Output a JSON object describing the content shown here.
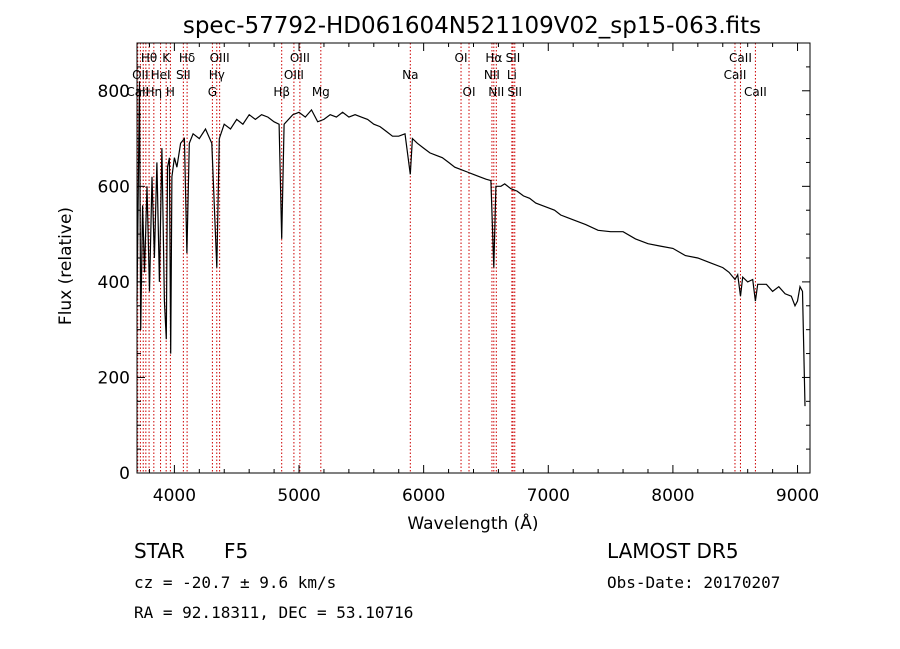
{
  "chart_data": {
    "type": "line",
    "title": "spec-57792-HD061604N521109V02_sp15-063.fits",
    "xlabel": "Wavelength (Å)",
    "ylabel": "Flux (relative)",
    "xlim": [
      3700,
      9100
    ],
    "ylim": [
      0,
      900
    ],
    "x_ticks": [
      4000,
      5000,
      6000,
      7000,
      8000,
      9000
    ],
    "y_ticks": [
      0,
      200,
      400,
      600,
      800
    ],
    "grid": false,
    "series": [
      {
        "points": [
          [
            3700,
            360
          ],
          [
            3720,
            820
          ],
          [
            3730,
            300
          ],
          [
            3745,
            560
          ],
          [
            3760,
            420
          ],
          [
            3780,
            600
          ],
          [
            3800,
            380
          ],
          [
            3820,
            620
          ],
          [
            3840,
            450
          ],
          [
            3860,
            650
          ],
          [
            3880,
            400
          ],
          [
            3900,
            680
          ],
          [
            3920,
            360
          ],
          [
            3935,
            280
          ],
          [
            3945,
            640
          ],
          [
            3960,
            660
          ],
          [
            3970,
            250
          ],
          [
            3980,
            620
          ],
          [
            4000,
            660
          ],
          [
            4020,
            640
          ],
          [
            4050,
            690
          ],
          [
            4080,
            700
          ],
          [
            4100,
            460
          ],
          [
            4120,
            690
          ],
          [
            4150,
            710
          ],
          [
            4200,
            700
          ],
          [
            4250,
            720
          ],
          [
            4300,
            690
          ],
          [
            4340,
            430
          ],
          [
            4360,
            700
          ],
          [
            4400,
            730
          ],
          [
            4450,
            720
          ],
          [
            4500,
            740
          ],
          [
            4550,
            730
          ],
          [
            4600,
            750
          ],
          [
            4650,
            740
          ],
          [
            4700,
            750
          ],
          [
            4750,
            745
          ],
          [
            4800,
            735
          ],
          [
            4840,
            730
          ],
          [
            4861,
            490
          ],
          [
            4880,
            730
          ],
          [
            4950,
            750
          ],
          [
            5000,
            755
          ],
          [
            5050,
            745
          ],
          [
            5100,
            760
          ],
          [
            5150,
            735
          ],
          [
            5200,
            740
          ],
          [
            5250,
            750
          ],
          [
            5300,
            745
          ],
          [
            5350,
            755
          ],
          [
            5400,
            745
          ],
          [
            5450,
            750
          ],
          [
            5500,
            745
          ],
          [
            5550,
            740
          ],
          [
            5600,
            730
          ],
          [
            5650,
            725
          ],
          [
            5700,
            715
          ],
          [
            5750,
            705
          ],
          [
            5800,
            705
          ],
          [
            5850,
            710
          ],
          [
            5893,
            625
          ],
          [
            5910,
            700
          ],
          [
            5950,
            690
          ],
          [
            6000,
            680
          ],
          [
            6050,
            670
          ],
          [
            6100,
            665
          ],
          [
            6150,
            660
          ],
          [
            6200,
            650
          ],
          [
            6250,
            640
          ],
          [
            6300,
            635
          ],
          [
            6350,
            630
          ],
          [
            6400,
            625
          ],
          [
            6450,
            620
          ],
          [
            6500,
            615
          ],
          [
            6540,
            612
          ],
          [
            6563,
            430
          ],
          [
            6580,
            600
          ],
          [
            6620,
            600
          ],
          [
            6650,
            605
          ],
          [
            6700,
            595
          ],
          [
            6750,
            590
          ],
          [
            6800,
            580
          ],
          [
            6850,
            575
          ],
          [
            6900,
            565
          ],
          [
            6950,
            560
          ],
          [
            7000,
            555
          ],
          [
            7050,
            550
          ],
          [
            7100,
            540
          ],
          [
            7150,
            535
          ],
          [
            7200,
            530
          ],
          [
            7300,
            520
          ],
          [
            7400,
            508
          ],
          [
            7500,
            505
          ],
          [
            7600,
            505
          ],
          [
            7700,
            490
          ],
          [
            7800,
            480
          ],
          [
            7900,
            475
          ],
          [
            8000,
            470
          ],
          [
            8100,
            455
          ],
          [
            8200,
            450
          ],
          [
            8300,
            440
          ],
          [
            8400,
            430
          ],
          [
            8450,
            420
          ],
          [
            8498,
            405
          ],
          [
            8520,
            415
          ],
          [
            8542,
            370
          ],
          [
            8560,
            410
          ],
          [
            8600,
            400
          ],
          [
            8640,
            405
          ],
          [
            8662,
            360
          ],
          [
            8680,
            395
          ],
          [
            8750,
            395
          ],
          [
            8800,
            380
          ],
          [
            8850,
            390
          ],
          [
            8900,
            375
          ],
          [
            8950,
            370
          ],
          [
            8980,
            350
          ],
          [
            9000,
            360
          ],
          [
            9020,
            390
          ],
          [
            9040,
            380
          ],
          [
            9060,
            140
          ]
        ]
      }
    ],
    "line_markers": [
      {
        "label": "Hθ",
        "wavelength": 3797,
        "row": 0
      },
      {
        "label": "K",
        "wavelength": 3934,
        "row": 0
      },
      {
        "label": "Hδ",
        "wavelength": 4102,
        "row": 0
      },
      {
        "label": "OIII",
        "wavelength": 4363,
        "row": 0
      },
      {
        "label": "OIII",
        "wavelength": 5007,
        "row": 0
      },
      {
        "label": "OI",
        "wavelength": 6300,
        "row": 0
      },
      {
        "label": "Hα",
        "wavelength": 6563,
        "row": 0
      },
      {
        "label": "SII",
        "wavelength": 6717,
        "row": 0
      },
      {
        "label": "CaII",
        "wavelength": 8542,
        "row": 0
      },
      {
        "label": "OII",
        "wavelength": 3727,
        "row": 1
      },
      {
        "label": "HeI",
        "wavelength": 3889,
        "row": 1
      },
      {
        "label": "SII",
        "wavelength": 4072,
        "row": 1
      },
      {
        "label": "Hγ",
        "wavelength": 4340,
        "row": 1
      },
      {
        "label": "OIII",
        "wavelength": 4959,
        "row": 1
      },
      {
        "label": "Na",
        "wavelength": 5893,
        "row": 1
      },
      {
        "label": "NII",
        "wavelength": 6548,
        "row": 1
      },
      {
        "label": "Li",
        "wavelength": 6708,
        "row": 1
      },
      {
        "label": "CaII",
        "wavelength": 8498,
        "row": 1
      },
      {
        "label": "CaII",
        "wavelength": 3706,
        "row": 2
      },
      {
        "label": "Hη",
        "wavelength": 3835,
        "row": 2
      },
      {
        "label": "H",
        "wavelength": 3968,
        "row": 2
      },
      {
        "label": "G",
        "wavelength": 4305,
        "row": 2
      },
      {
        "label": "Hβ",
        "wavelength": 4861,
        "row": 2
      },
      {
        "label": "Mg",
        "wavelength": 5175,
        "row": 2
      },
      {
        "label": "OI",
        "wavelength": 6364,
        "row": 2
      },
      {
        "label": "NII",
        "wavelength": 6583,
        "row": 2
      },
      {
        "label": "SII",
        "wavelength": 6731,
        "row": 2
      },
      {
        "label": "CaII",
        "wavelength": 8662,
        "row": 2
      }
    ],
    "extra_markers": [
      3750,
      3771,
      3889,
      4072,
      4102,
      4340,
      4861,
      4959,
      5007,
      5175,
      6300,
      6548,
      6583,
      6717,
      6731,
      8498,
      8542,
      8662
    ],
    "marker_color": "#cc0000",
    "line_color": "#000000"
  },
  "info": {
    "object_class": "STAR",
    "subclass": "F5",
    "survey": "LAMOST  DR5",
    "cz": "cz = -20.7 ± 9.6 km/s",
    "obs_date": "Obs-Date: 20170207",
    "coords": "RA =  92.18311, DEC =  53.10716"
  }
}
